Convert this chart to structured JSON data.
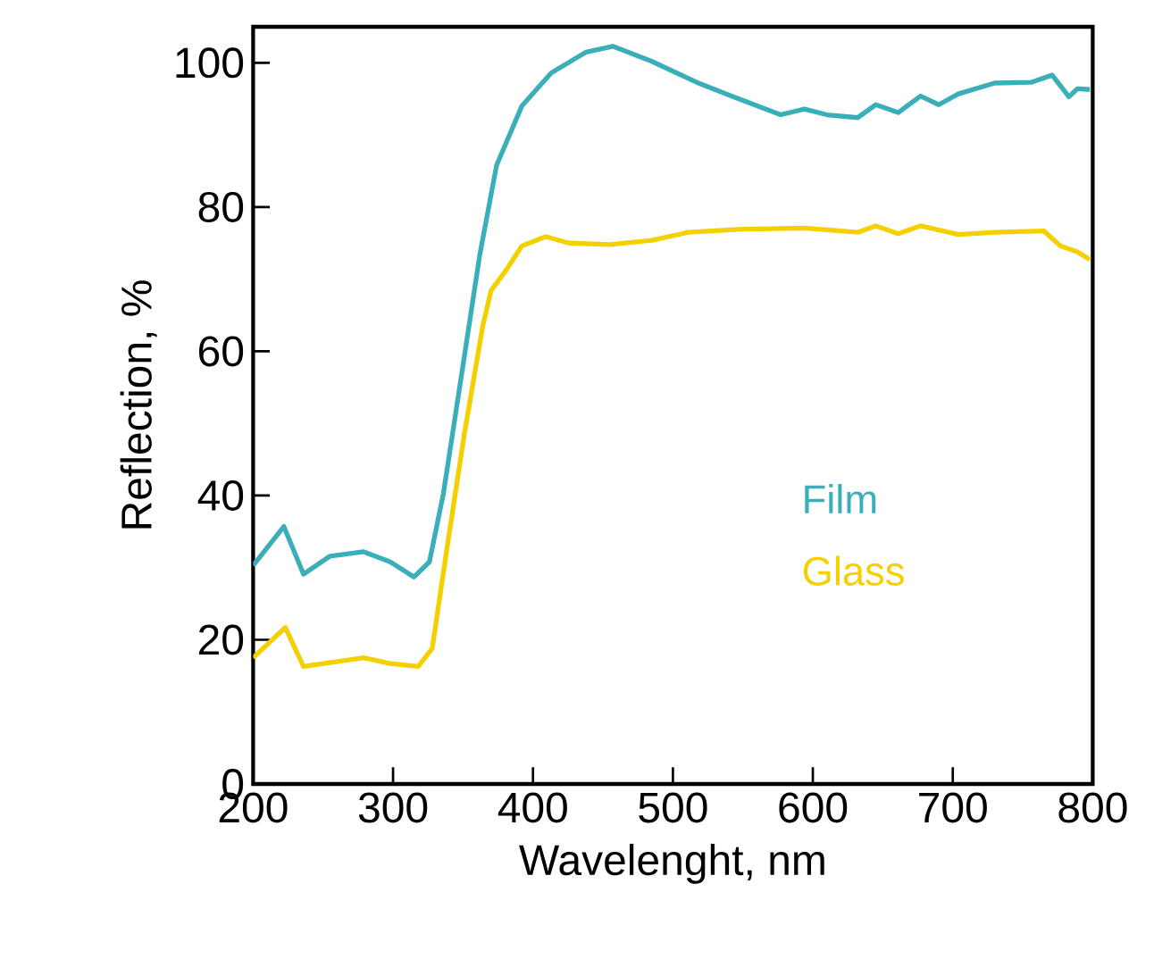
{
  "chart_data": {
    "type": "line",
    "xlabel": "Wavelenght, nm",
    "ylabel": "Reflection, %",
    "xlim": [
      200,
      800
    ],
    "ylim": [
      0,
      105
    ],
    "xticks": [
      200,
      300,
      400,
      500,
      600,
      700,
      800
    ],
    "yticks": [
      0,
      20,
      40,
      60,
      80,
      100
    ],
    "legend": "right",
    "grid": false,
    "marker": "none",
    "line_style": "solid",
    "series": [
      {
        "name": "Film",
        "color": "#3aafb9",
        "x": [
          200,
          222,
          236,
          255,
          279,
          298,
          315,
          326,
          336,
          349,
          362,
          374,
          392,
          413,
          438,
          457,
          485,
          517,
          543,
          577,
          594,
          610,
          632,
          645,
          661,
          677,
          690,
          704,
          730,
          756,
          771,
          783,
          789,
          798
        ],
        "values": [
          30.3,
          35.7,
          29.1,
          31.6,
          32.2,
          30.8,
          28.7,
          30.8,
          40.3,
          56.8,
          73.4,
          85.8,
          94.0,
          98.6,
          101.5,
          102.3,
          100.2,
          97.3,
          95.3,
          92.8,
          93.6,
          92.8,
          92.4,
          94.2,
          93.1,
          95.4,
          94.2,
          95.7,
          97.2,
          97.3,
          98.3,
          95.3,
          96.4,
          96.3
        ]
      },
      {
        "name": "Glass",
        "color": "#f5d000",
        "x": [
          200,
          223,
          236,
          279,
          298,
          318,
          328,
          338,
          351,
          364,
          370,
          381,
          392,
          409,
          426,
          455,
          485,
          511,
          547,
          594,
          632,
          645,
          661,
          677,
          704,
          730,
          765,
          777,
          789,
          798
        ],
        "values": [
          17.5,
          21.7,
          16.3,
          17.5,
          16.7,
          16.3,
          18.8,
          32.0,
          48.6,
          63.4,
          68.4,
          71.3,
          74.6,
          75.9,
          75.0,
          74.8,
          75.4,
          76.5,
          76.9,
          77.1,
          76.5,
          77.4,
          76.3,
          77.4,
          76.2,
          76.5,
          76.7,
          74.6,
          73.8,
          72.7
        ]
      }
    ]
  }
}
